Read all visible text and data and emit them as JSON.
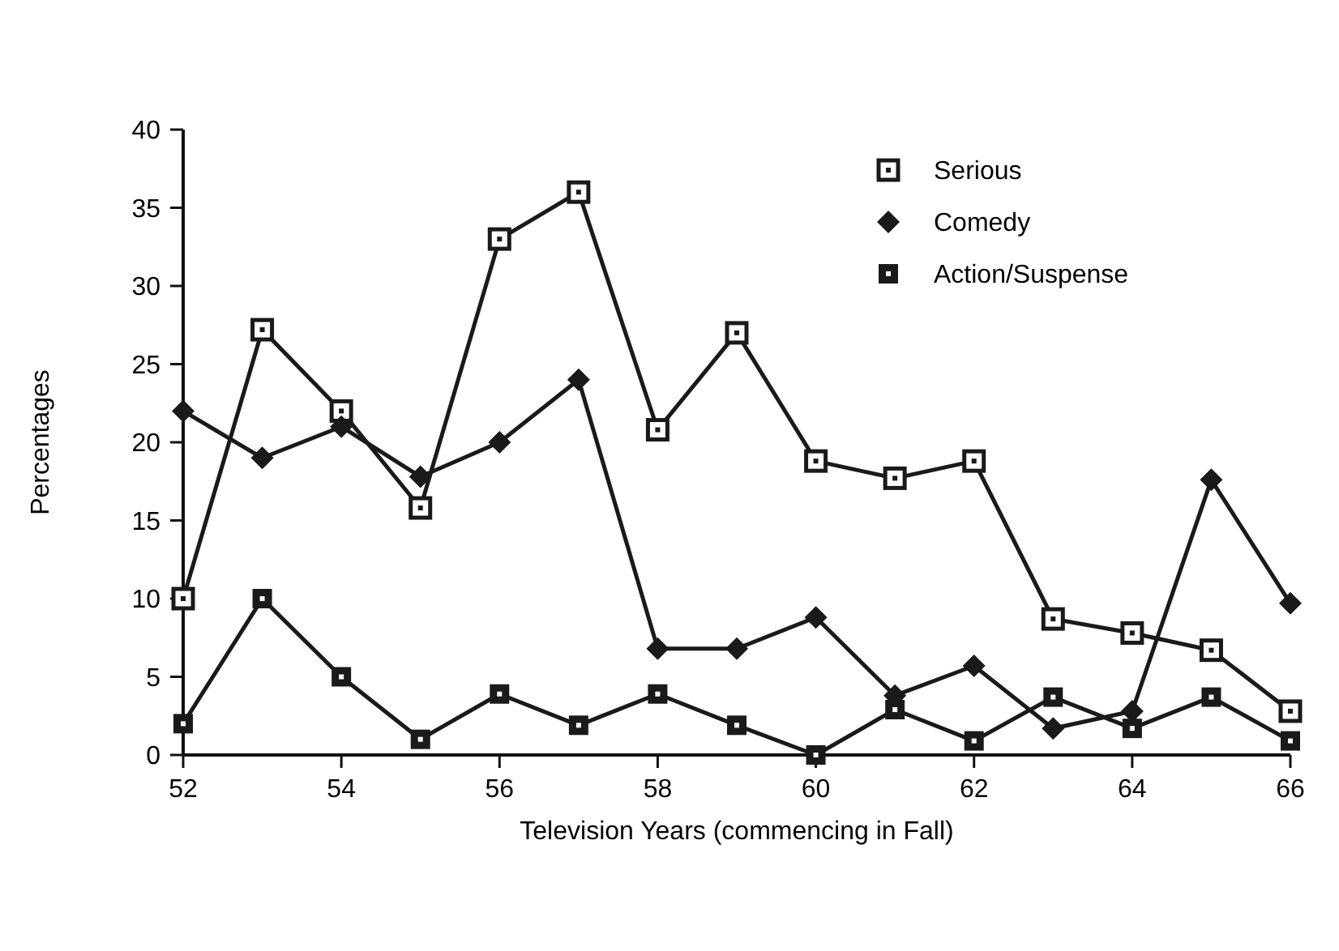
{
  "chart_data": {
    "type": "line",
    "xlabel": "Television Years (commencing in Fall)",
    "ylabel": "Percentages",
    "x": [
      52,
      53,
      54,
      55,
      56,
      57,
      58,
      59,
      60,
      61,
      62,
      63,
      64,
      65,
      66
    ],
    "xlim": [
      52,
      66
    ],
    "xticks": [
      52,
      54,
      56,
      58,
      60,
      62,
      64,
      66
    ],
    "ylim": [
      0,
      40
    ],
    "yticks": [
      0,
      5,
      10,
      15,
      20,
      25,
      30,
      35,
      40
    ],
    "grid": false,
    "legend": "top right",
    "line_style": "solid",
    "series": [
      {
        "name": "Serious",
        "color": "#1a1a1a",
        "marker": "square",
        "values": [
          10,
          27.2,
          22,
          15.8,
          33,
          36,
          20.8,
          27,
          18.8,
          17.7,
          18.8,
          8.7,
          7.8,
          6.7,
          2.8
        ]
      },
      {
        "name": "Comedy",
        "color": "#1a1a1a",
        "marker": "diamond",
        "values": [
          22,
          19,
          21,
          17.8,
          20,
          24,
          6.8,
          6.8,
          8.8,
          3.8,
          5.7,
          1.7,
          2.8,
          17.6,
          9.7
        ]
      },
      {
        "name": "Action/Suspense",
        "color": "#1a1a1a",
        "marker": "square",
        "values": [
          2,
          10,
          5,
          1,
          3.9,
          1.9,
          3.9,
          1.9,
          0,
          2.9,
          0.9,
          3.7,
          1.7,
          3.7,
          0.9
        ]
      }
    ]
  }
}
